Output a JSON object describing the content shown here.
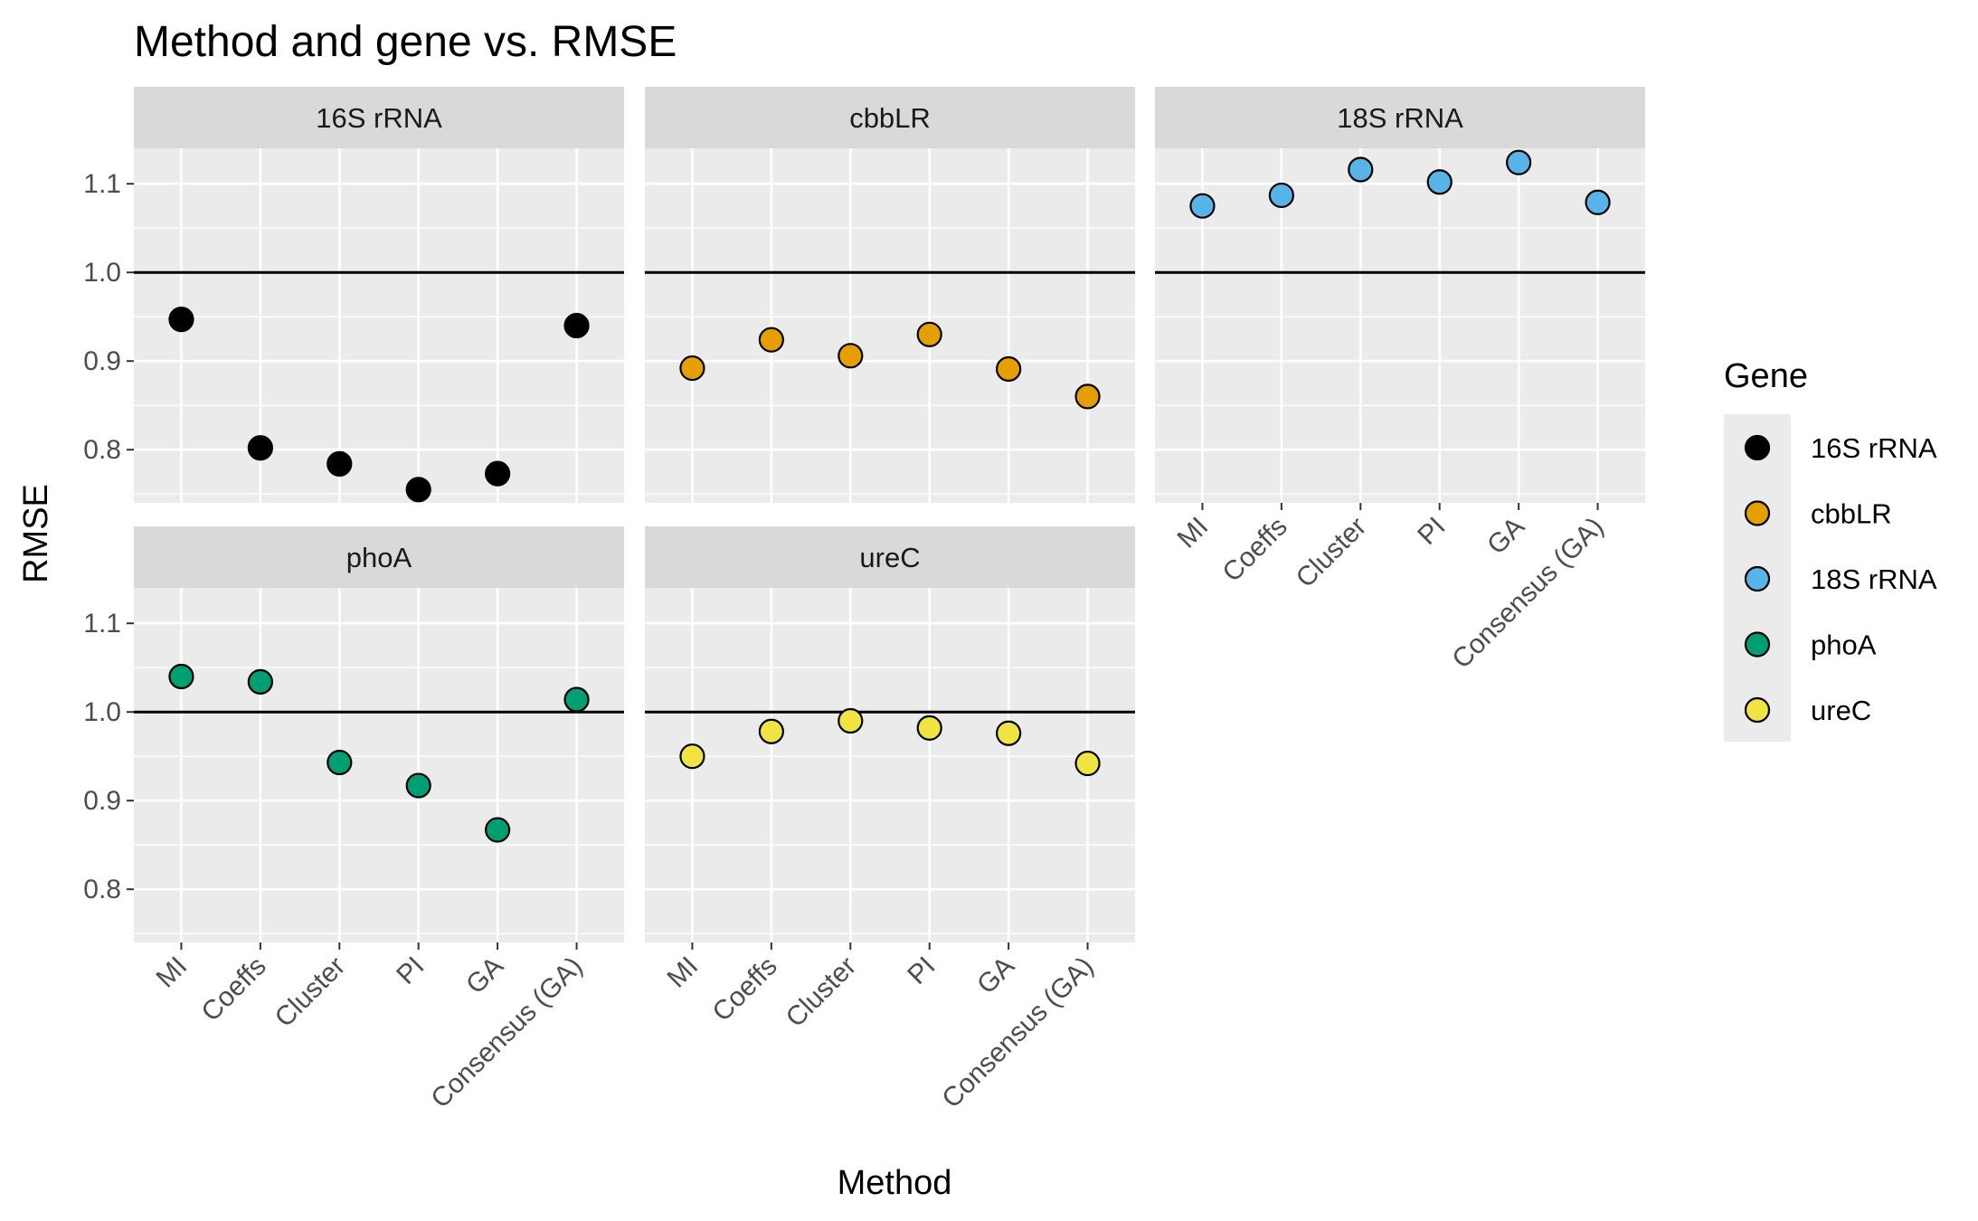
{
  "chart_data": {
    "type": "scatter",
    "title": "Method and gene vs. RMSE",
    "xlabel": "Method",
    "ylabel": "RMSE",
    "categories": [
      "MI",
      "Coeffs",
      "Cluster",
      "PI",
      "GA",
      "Consensus (GA)"
    ],
    "ylim": [
      0.74,
      1.14
    ],
    "y_ticks": [
      "0.8",
      "0.9",
      "1.0",
      "1.1"
    ],
    "reference_line": 1.0,
    "grid": true,
    "facets": [
      {
        "gene": "16S rRNA",
        "values": [
          0.947,
          0.802,
          0.784,
          0.755,
          0.773,
          0.94
        ]
      },
      {
        "gene": "cbbLR",
        "values": [
          0.892,
          0.924,
          0.906,
          0.93,
          0.891,
          0.86
        ]
      },
      {
        "gene": "18S rRNA",
        "values": [
          1.075,
          1.087,
          1.116,
          1.102,
          1.124,
          1.079
        ]
      },
      {
        "gene": "phoA",
        "values": [
          1.04,
          1.034,
          0.943,
          0.917,
          0.867,
          1.014
        ]
      },
      {
        "gene": "ureC",
        "values": [
          0.95,
          0.978,
          0.99,
          0.982,
          0.976,
          0.942
        ]
      }
    ],
    "legend": {
      "title": "Gene",
      "position": "right",
      "entries": [
        {
          "label": "16S rRNA",
          "color": "#000000"
        },
        {
          "label": "cbbLR",
          "color": "#E69F00"
        },
        {
          "label": "18S rRNA",
          "color": "#56B4E9"
        },
        {
          "label": "phoA",
          "color": "#009E73"
        },
        {
          "label": "ureC",
          "color": "#F0E442"
        }
      ]
    }
  },
  "colors": {
    "panel_bg": "#EBEBEB",
    "strip_bg": "#D9D9D9",
    "grid": "#FFFFFF",
    "reference_line": "#000000",
    "point_outline": "#000000"
  }
}
